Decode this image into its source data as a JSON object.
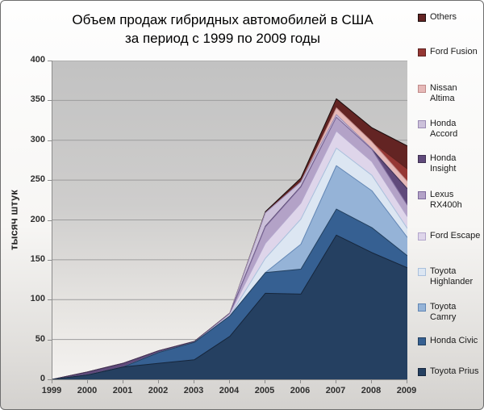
{
  "header": {
    "line1": "Объем продаж гибридных автомобилей в США",
    "line2": "за период с 1999 по 2009 годы"
  },
  "chart_data": {
    "type": "area",
    "stacked": true,
    "title": "Объем продаж гибридных автомобилей в США за период с 1999 по 2009 годы",
    "ylabel": "тысяч штук",
    "xlabel": "",
    "x": [
      1999,
      2000,
      2001,
      2002,
      2003,
      2004,
      2005,
      2006,
      2007,
      2008,
      2009
    ],
    "ylim": [
      0,
      400
    ],
    "ytick_step": 50,
    "grid": true,
    "legend_position": "right",
    "plot_bg": "gray-gradient",
    "series_bottom_to_top": [
      {
        "name": "Toyota Prius",
        "color": "#254061",
        "border": "#16263c",
        "values": [
          0,
          5.6,
          15.6,
          20.1,
          24.6,
          54,
          108,
          107,
          181,
          159,
          140
        ]
      },
      {
        "name": "Honda Civic",
        "color": "#366092",
        "border": "#23405f",
        "values": [
          0,
          0,
          0,
          13.7,
          21.8,
          25.6,
          25.9,
          31.2,
          32.6,
          31.3,
          15.1
        ]
      },
      {
        "name": "Toyota Camry",
        "color": "#95b3d7",
        "border": "#6286b4",
        "values": [
          0,
          0,
          0,
          0,
          0,
          0,
          0,
          31.3,
          54.5,
          46.3,
          22.9
        ]
      },
      {
        "name": "Toyota Highlander",
        "color": "#dce6f2",
        "border": "#a9c0dc",
        "values": [
          0,
          0,
          0,
          0,
          0,
          0,
          18,
          31.5,
          22,
          19.4,
          11.3
        ]
      },
      {
        "name": "Ford Escape",
        "color": "#ded5ea",
        "border": "#b3a6cc",
        "values": [
          0,
          0,
          0,
          0,
          0,
          2.6,
          18.8,
          20.1,
          21.4,
          17.2,
          14.8
        ]
      },
      {
        "name": "Lexus RX400h",
        "color": "#b3a2c7",
        "border": "#7e6a9c",
        "values": [
          0,
          0,
          0,
          0,
          0,
          0,
          20.7,
          20.2,
          17.3,
          15.2,
          14.4
        ]
      },
      {
        "name": "Honda Insight",
        "color": "#604a7b",
        "border": "#3f3151",
        "values": [
          0,
          3.8,
          4.7,
          2.2,
          1.2,
          0.6,
          0.7,
          0.7,
          0,
          0,
          20.6
        ]
      },
      {
        "name": "Honda Accord",
        "color": "#ccc1da",
        "border": "#9a8bb3",
        "values": [
          0,
          0,
          0,
          0,
          0,
          0.5,
          16.8,
          5.6,
          3.4,
          1,
          0
        ]
      },
      {
        "name": "Nissan Altima",
        "color": "#e6b9b8",
        "border": "#c08a89",
        "values": [
          0,
          0,
          0,
          0,
          0,
          0,
          0,
          0,
          8.4,
          8.8,
          9.3
        ]
      },
      {
        "name": "Ford Fusion",
        "color": "#953734",
        "border": "#5e2220",
        "values": [
          0,
          0,
          0,
          0,
          0,
          0,
          0,
          0,
          0,
          0,
          15.6
        ]
      },
      {
        "name": "Others",
        "color": "#632423",
        "border": "#1a0d0d",
        "values": [
          0,
          0,
          0,
          0,
          0,
          0,
          1.5,
          5,
          11.5,
          17.5,
          28.9
        ]
      }
    ]
  }
}
